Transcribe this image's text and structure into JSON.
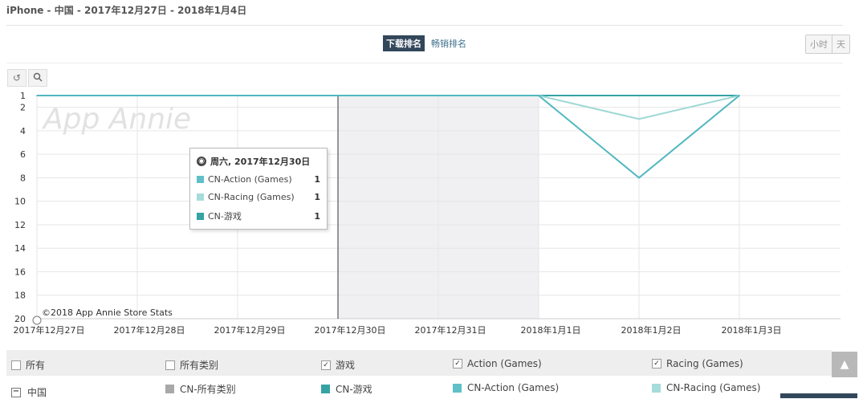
{
  "header": {
    "title": "iPhone - 中国 - 2017年12月27日 - 2018年1月4日"
  },
  "rank_tabs": {
    "active": "下载排名",
    "inactive": "畅销排名"
  },
  "granularity": {
    "hour": "小时",
    "day": "天"
  },
  "tools": {
    "reset_icon": "reset-icon",
    "zoom_icon": "zoom-icon"
  },
  "chart_data": {
    "type": "line",
    "categories": [
      "2017年12月27日",
      "2017年12月28日",
      "2017年12月29日",
      "2017年12月30日",
      "2017年12月31日",
      "2018年1月1日",
      "2018年1月2日",
      "2018年1月3日"
    ],
    "y_ticks": [
      1,
      2,
      4,
      6,
      8,
      10,
      12,
      14,
      16,
      18,
      20
    ],
    "ylim": [
      1,
      20
    ],
    "y_reversed": true,
    "watermark": "App Annie",
    "copyright": "©2018 App Annie Store Stats",
    "highlight_category": "2017年12月30日",
    "shaded_range": [
      "2017年12月30日",
      "2018年1月1日"
    ],
    "series": [
      {
        "name": "CN-游戏",
        "color": "#35a3a3",
        "values": [
          1,
          1,
          1,
          1,
          1,
          1,
          1,
          1
        ]
      },
      {
        "name": "CN-Racing (Games)",
        "color": "#9dd8d6",
        "values": [
          1,
          1,
          1,
          1,
          1,
          1,
          3,
          1
        ]
      },
      {
        "name": "CN-Action (Games)",
        "color": "#52b8c0",
        "values": [
          1,
          1,
          1,
          1,
          1,
          1,
          8,
          1
        ]
      }
    ]
  },
  "tooltip": {
    "date": "周六, 2017年12月30日",
    "rows": [
      {
        "name": "CN-Action (Games)",
        "value": "1",
        "color": "#5fc0c8"
      },
      {
        "name": "CN-Racing (Games)",
        "value": "1",
        "color": "#a6dcda"
      },
      {
        "name": "CN-游戏",
        "value": "1",
        "color": "#35a3a3"
      }
    ]
  },
  "legend": {
    "all": "所有",
    "all_categories": "所有类别",
    "games": "游戏",
    "action": "Action (Games)",
    "racing": "Racing (Games)",
    "checked": "✓",
    "country": "中国",
    "minus": "−",
    "series_all": "CN-所有类别",
    "series_games": "CN-游戏",
    "series_action": "CN-Action (Games)",
    "series_racing": "CN-Racing (Games)",
    "color_all": "#a8a8a8",
    "color_games": "#35a3a3",
    "color_action": "#5fc0c8",
    "color_racing": "#a6dcda"
  },
  "scroll_top": {
    "icon": "arrow-up-icon",
    "glyph": "▲"
  }
}
